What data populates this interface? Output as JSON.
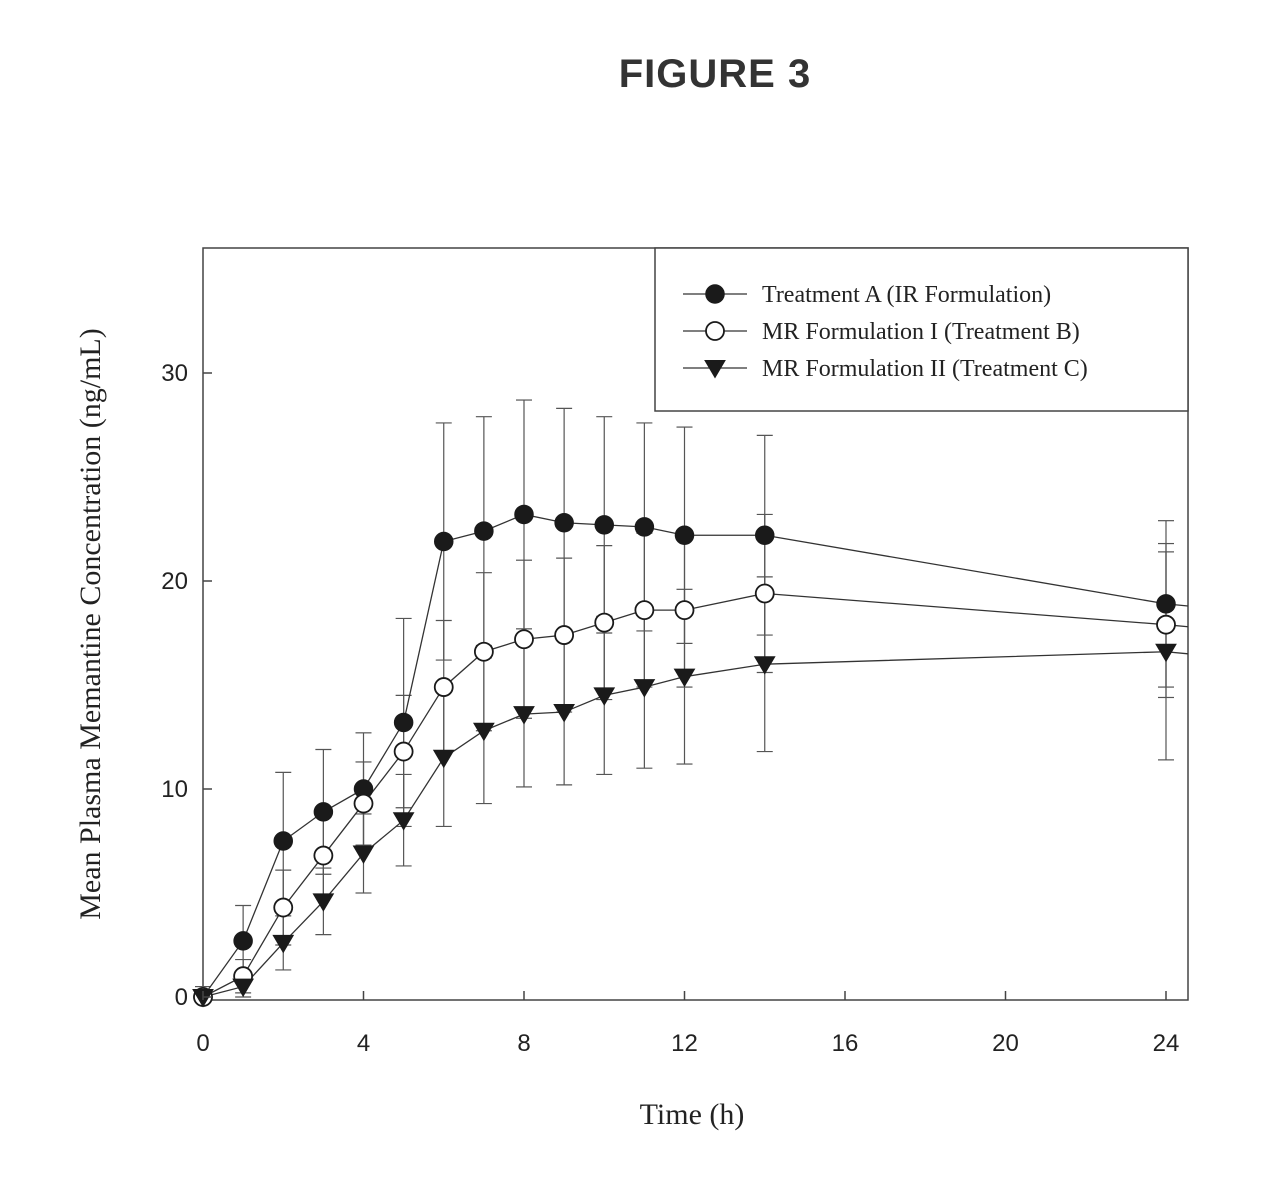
{
  "figure_title": "FIGURE 3",
  "chart_data": {
    "type": "line",
    "title": "",
    "xlabel": "Time (h)",
    "ylabel": "Mean Plasma Memantine Concentration (ng/mL)",
    "xlim": [
      0,
      24.5
    ],
    "ylim": [
      0,
      36
    ],
    "x_ticks": [
      0,
      4,
      8,
      12,
      16,
      20,
      24
    ],
    "y_ticks": [
      0,
      10,
      20,
      30
    ],
    "x_tick_labels": [
      "0",
      "4",
      "8",
      "12",
      "16",
      "20",
      "24"
    ],
    "y_tick_labels": [
      "0",
      "10",
      "20",
      "30"
    ],
    "legend_position": "top-right",
    "series": [
      {
        "name": "Treatment A (IR Formulation)",
        "marker": "filled-circle",
        "x": [
          0,
          1,
          2,
          3,
          4,
          5,
          6,
          7,
          8,
          9,
          10,
          11,
          12,
          14,
          24
        ],
        "values": [
          0,
          2.7,
          7.5,
          8.9,
          10.0,
          13.2,
          21.9,
          22.4,
          23.2,
          22.8,
          22.7,
          22.6,
          22.2,
          22.2,
          18.9
        ],
        "error": [
          0.5,
          1.7,
          3.3,
          3.0,
          2.7,
          5.0,
          5.7,
          5.5,
          5.5,
          5.5,
          5.2,
          5.0,
          5.2,
          4.8,
          4.0
        ]
      },
      {
        "name": "MR Formulation I (Treatment B)",
        "marker": "open-circle",
        "x": [
          0,
          1,
          2,
          3,
          4,
          5,
          6,
          7,
          8,
          9,
          10,
          11,
          12,
          14,
          24
        ],
        "values": [
          0,
          1.0,
          4.3,
          6.8,
          9.3,
          11.8,
          14.9,
          16.6,
          17.2,
          17.4,
          18.0,
          18.6,
          18.6,
          19.4,
          17.9
        ],
        "error": [
          0.3,
          0.8,
          1.8,
          1.9,
          2.0,
          2.7,
          3.2,
          3.8,
          3.8,
          3.7,
          3.7,
          3.7,
          3.7,
          3.8,
          3.5
        ]
      },
      {
        "name": "MR Formulation II (Treatment C)",
        "marker": "filled-triangle-down",
        "x": [
          0,
          1,
          2,
          3,
          4,
          5,
          6,
          7,
          8,
          9,
          10,
          11,
          12,
          14,
          24
        ],
        "values": [
          0,
          0.5,
          2.6,
          4.6,
          6.9,
          8.5,
          11.5,
          12.8,
          13.6,
          13.7,
          14.5,
          14.9,
          15.4,
          16.0,
          16.6
        ],
        "error": [
          0.2,
          0.6,
          1.3,
          1.6,
          1.9,
          2.2,
          3.3,
          3.5,
          3.5,
          3.5,
          3.8,
          3.9,
          4.2,
          4.2,
          5.2
        ]
      }
    ]
  }
}
